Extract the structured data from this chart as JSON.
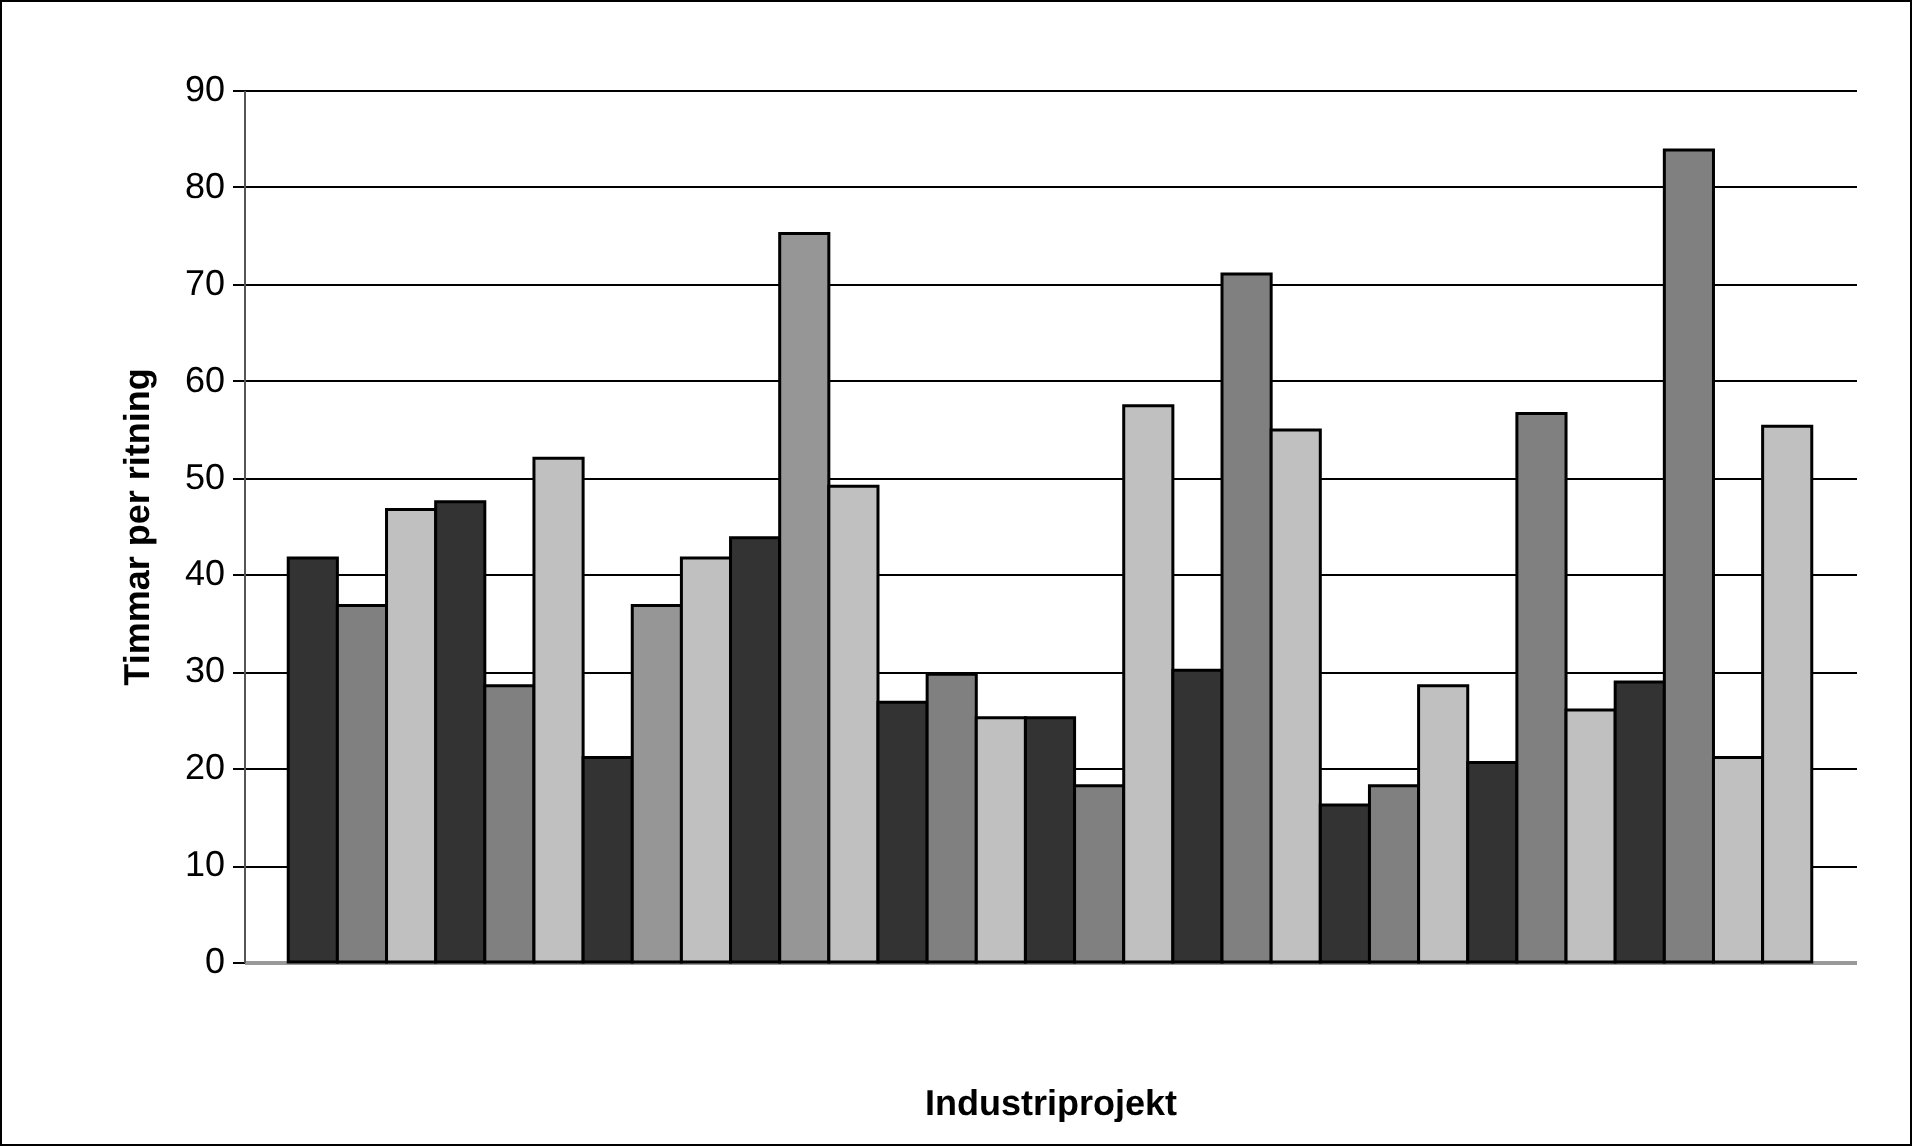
{
  "chart_data": {
    "type": "bar",
    "xlabel": "Industriprojekt",
    "ylabel": "Timmar per ritning",
    "categories": [
      null,
      null,
      null,
      null,
      null,
      null,
      null,
      null,
      null,
      null,
      null,
      null,
      null,
      null,
      null,
      null,
      null,
      null,
      null,
      null,
      null,
      null,
      null,
      null,
      null,
      null,
      null,
      null,
      null,
      null,
      null
    ],
    "values": [
      41.7,
      36.8,
      46.7,
      47.5,
      28.5,
      52.0,
      21.1,
      36.8,
      41.7,
      43.8,
      75.2,
      49.1,
      26.8,
      29.7,
      25.2,
      25.2,
      18.2,
      57.4,
      30.1,
      71.0,
      54.9,
      16.2,
      18.2,
      28.5,
      20.6,
      56.6,
      26.0,
      28.9,
      83.8,
      21.1,
      55.3
    ],
    "colors": [
      "#333333",
      "#808080",
      "#c0c0c0",
      "#333333",
      "#808080",
      "#c0c0c0",
      "#333333",
      "#969696",
      "#c0c0c0",
      "#333333",
      "#969696",
      "#c0c0c0",
      "#333333",
      "#808080",
      "#c0c0c0",
      "#333333",
      "#808080",
      "#c0c0c0",
      "#333333",
      "#808080",
      "#c0c0c0",
      "#333333",
      "#808080",
      "#c0c0c0",
      "#333333",
      "#808080",
      "#c0c0c0",
      "#333333",
      "#808080",
      "#c0c0c0",
      "#c0c0c0"
    ],
    "ylim": [
      0,
      90
    ],
    "yticks": [
      0,
      10,
      20,
      30,
      40,
      50,
      60,
      70,
      80,
      90
    ],
    "grid": "y"
  }
}
